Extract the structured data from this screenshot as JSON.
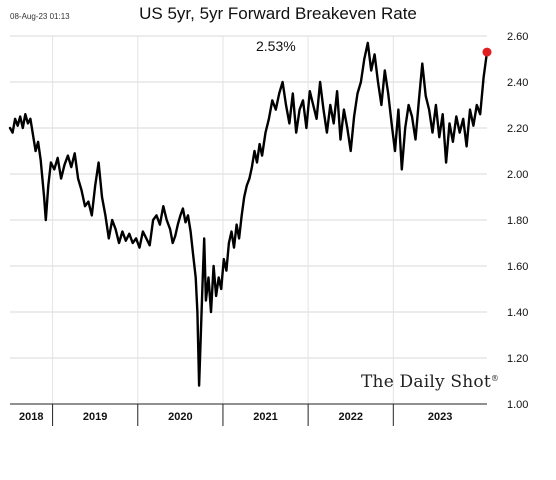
{
  "timestamp": "08-Aug-23 01:13",
  "brand": {
    "name": "The Daily Shot",
    "mark": "®"
  },
  "chart_data": {
    "type": "line",
    "title": "US 5yr, 5yr Forward Breakeven Rate",
    "annotation": "2.53%",
    "xlabel": "",
    "ylabel": "",
    "ylim": [
      1.0,
      2.6
    ],
    "xlim": [
      2018.0,
      2023.6
    ],
    "y_ticks": [
      "1.00",
      "1.20",
      "1.40",
      "1.60",
      "1.80",
      "2.00",
      "2.20",
      "2.40",
      "2.60"
    ],
    "x_categories": [
      {
        "label": "2018",
        "start": 2018.0,
        "end": 2018.5
      },
      {
        "label": "2019",
        "start": 2018.5,
        "end": 2019.5
      },
      {
        "label": "2020",
        "start": 2019.5,
        "end": 2020.5
      },
      {
        "label": "2021",
        "start": 2020.5,
        "end": 2021.5
      },
      {
        "label": "2022",
        "start": 2021.5,
        "end": 2022.5
      },
      {
        "label": "2023",
        "start": 2022.5,
        "end": 2023.6
      }
    ],
    "grid": true,
    "y_axis_position": "right",
    "line_color": "#000000",
    "marker_color": "#e02020",
    "last_point": {
      "x": 2023.6,
      "y": 2.53
    },
    "x": [
      2018.0,
      2018.03,
      2018.06,
      2018.09,
      2018.12,
      2018.15,
      2018.18,
      2018.21,
      2018.24,
      2018.27,
      2018.3,
      2018.33,
      2018.36,
      2018.38,
      2018.4,
      2018.42,
      2018.45,
      2018.48,
      2018.52,
      2018.56,
      2018.6,
      2018.64,
      2018.68,
      2018.72,
      2018.76,
      2018.8,
      2018.84,
      2018.88,
      2018.92,
      2018.96,
      2019.0,
      2019.04,
      2019.08,
      2019.12,
      2019.16,
      2019.2,
      2019.24,
      2019.28,
      2019.32,
      2019.36,
      2019.4,
      2019.44,
      2019.48,
      2019.52,
      2019.56,
      2019.6,
      2019.64,
      2019.68,
      2019.72,
      2019.76,
      2019.8,
      2019.84,
      2019.88,
      2019.91,
      2019.94,
      2019.97,
      2020.0,
      2020.03,
      2020.06,
      2020.09,
      2020.12,
      2020.15,
      2020.18,
      2020.2,
      2020.22,
      2020.24,
      2020.26,
      2020.28,
      2020.3,
      2020.33,
      2020.36,
      2020.39,
      2020.42,
      2020.45,
      2020.48,
      2020.51,
      2020.54,
      2020.57,
      2020.6,
      2020.63,
      2020.66,
      2020.69,
      2020.72,
      2020.75,
      2020.78,
      2020.81,
      2020.84,
      2020.87,
      2020.9,
      2020.93,
      2020.96,
      2021.0,
      2021.04,
      2021.08,
      2021.12,
      2021.16,
      2021.2,
      2021.24,
      2021.28,
      2021.32,
      2021.36,
      2021.4,
      2021.44,
      2021.48,
      2021.52,
      2021.56,
      2021.6,
      2021.64,
      2021.68,
      2021.72,
      2021.76,
      2021.8,
      2021.84,
      2021.88,
      2021.92,
      2021.96,
      2022.0,
      2022.04,
      2022.08,
      2022.12,
      2022.16,
      2022.2,
      2022.24,
      2022.28,
      2022.32,
      2022.36,
      2022.4,
      2022.44,
      2022.48,
      2022.52,
      2022.56,
      2022.6,
      2022.64,
      2022.68,
      2022.72,
      2022.76,
      2022.8,
      2022.84,
      2022.88,
      2022.92,
      2022.96,
      2023.0,
      2023.04,
      2023.08,
      2023.12,
      2023.16,
      2023.2,
      2023.24,
      2023.28,
      2023.32,
      2023.36,
      2023.4,
      2023.44,
      2023.48,
      2023.52,
      2023.56,
      2023.6
    ],
    "y": [
      2.2,
      2.18,
      2.24,
      2.21,
      2.25,
      2.2,
      2.26,
      2.22,
      2.24,
      2.17,
      2.1,
      2.14,
      2.06,
      1.98,
      1.9,
      1.8,
      1.95,
      2.05,
      2.02,
      2.07,
      1.98,
      2.04,
      2.08,
      2.03,
      2.09,
      1.98,
      1.93,
      1.86,
      1.88,
      1.82,
      1.95,
      2.05,
      1.9,
      1.82,
      1.72,
      1.8,
      1.76,
      1.7,
      1.75,
      1.71,
      1.74,
      1.7,
      1.72,
      1.68,
      1.75,
      1.72,
      1.69,
      1.8,
      1.82,
      1.78,
      1.86,
      1.8,
      1.76,
      1.7,
      1.73,
      1.78,
      1.82,
      1.85,
      1.79,
      1.82,
      1.75,
      1.65,
      1.55,
      1.4,
      1.08,
      1.3,
      1.52,
      1.72,
      1.45,
      1.55,
      1.4,
      1.6,
      1.47,
      1.55,
      1.5,
      1.63,
      1.58,
      1.7,
      1.75,
      1.68,
      1.78,
      1.72,
      1.82,
      1.9,
      1.95,
      1.98,
      2.03,
      2.1,
      2.05,
      2.13,
      2.08,
      2.18,
      2.24,
      2.32,
      2.28,
      2.35,
      2.4,
      2.3,
      2.22,
      2.35,
      2.18,
      2.28,
      2.32,
      2.2,
      2.36,
      2.3,
      2.24,
      2.4,
      2.28,
      2.18,
      2.3,
      2.22,
      2.36,
      2.15,
      2.28,
      2.2,
      2.1,
      2.25,
      2.35,
      2.4,
      2.5,
      2.57,
      2.45,
      2.52,
      2.4,
      2.3,
      2.45,
      2.35,
      2.22,
      2.1,
      2.28,
      2.02,
      2.2,
      2.3,
      2.25,
      2.15,
      2.32,
      2.48,
      2.34,
      2.28,
      2.18,
      2.3,
      2.16,
      2.26,
      2.05,
      2.22,
      2.14,
      2.25,
      2.18,
      2.24,
      2.12,
      2.28,
      2.21,
      2.3,
      2.26,
      2.42,
      2.53
    ]
  }
}
